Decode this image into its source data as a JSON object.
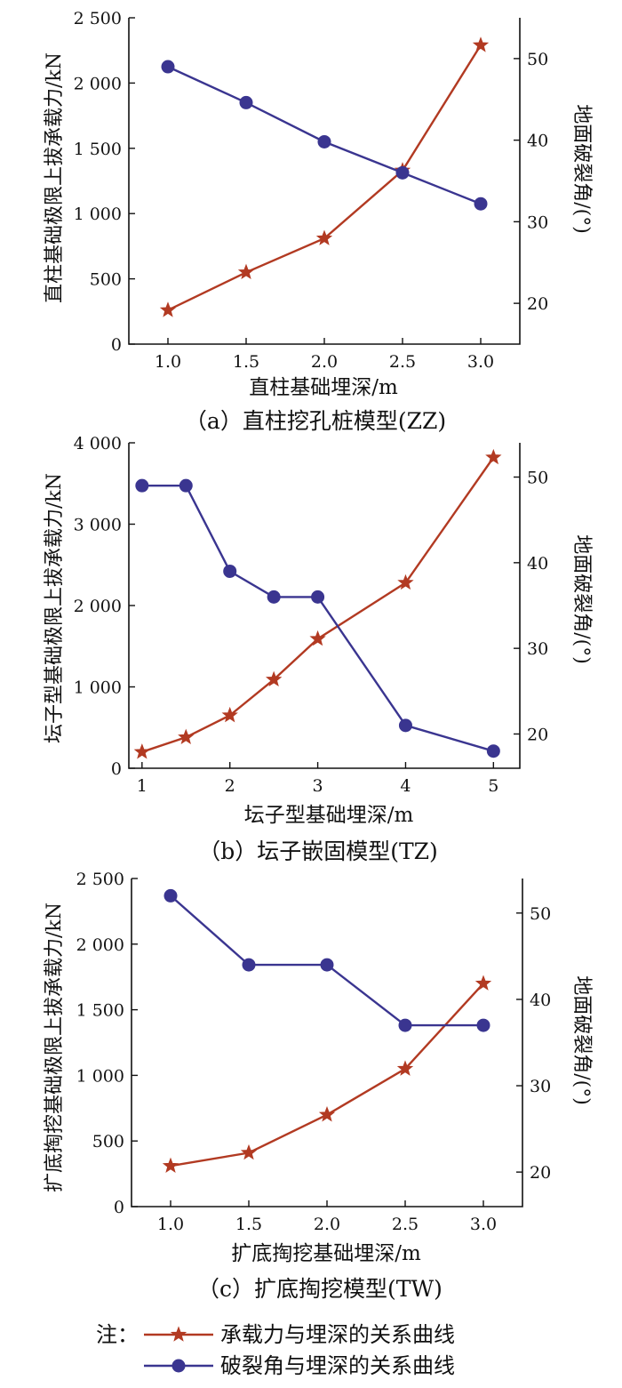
{
  "chart_data": [
    {
      "type": "line",
      "caption": "（a）直柱挖孔桩模型(ZZ)",
      "xlabel": "直柱基础埋深/m",
      "ylabel_left": "直柱基础极限上拔承载力/kN",
      "ylabel_right": "地面破裂角/(°)",
      "xlim": [
        0.75,
        3.25
      ],
      "xticks": [
        1.0,
        1.5,
        2.0,
        2.5,
        3.0
      ],
      "xtick_labels": [
        "1.0",
        "1.5",
        "2.0",
        "2.5",
        "3.0"
      ],
      "ylim_left": [
        0,
        2500
      ],
      "yticks_left": [
        0,
        500,
        1000,
        1500,
        2000,
        2500
      ],
      "ytick_labels_left": [
        "0",
        "500",
        "1 000",
        "1 500",
        "2 000",
        "2 500"
      ],
      "ylim_right": [
        15,
        55
      ],
      "yticks_right": [
        20,
        30,
        40,
        50
      ],
      "ytick_labels_right": [
        "20",
        "30",
        "40",
        "50"
      ],
      "grid": false,
      "series": [
        {
          "name": "承载力与埋深的关系曲线",
          "axis": "left",
          "marker": "star",
          "color": "#b23a22",
          "x": [
            1.0,
            1.5,
            2.0,
            2.5,
            3.0
          ],
          "values": [
            260,
            550,
            810,
            1330,
            2290
          ]
        },
        {
          "name": "破裂角与埋深的关系曲线",
          "axis": "right",
          "marker": "circle",
          "color": "#3a3590",
          "x": [
            1.0,
            1.5,
            2.0,
            2.5,
            3.0
          ],
          "values": [
            49,
            44.6,
            39.8,
            36,
            32.2
          ]
        }
      ]
    },
    {
      "type": "line",
      "caption": "（b）坛子嵌固模型(TZ)",
      "xlabel": "坛子型基础埋深/m",
      "ylabel_left": "坛子型基础极限上拔承载力/kN",
      "ylabel_right": "地面破裂角/(°)",
      "xlim": [
        0.85,
        5.3
      ],
      "xticks": [
        1,
        2,
        3,
        4,
        5
      ],
      "xtick_labels": [
        "1",
        "2",
        "3",
        "4",
        "5"
      ],
      "ylim_left": [
        0,
        4000
      ],
      "yticks_left": [
        0,
        1000,
        2000,
        3000,
        4000
      ],
      "ytick_labels_left": [
        "0",
        "1 000",
        "2 000",
        "3 000",
        "4 000"
      ],
      "ylim_right": [
        16,
        54
      ],
      "yticks_right": [
        20,
        30,
        40,
        50
      ],
      "ytick_labels_right": [
        "20",
        "30",
        "40",
        "50"
      ],
      "grid": false,
      "series": [
        {
          "name": "承载力与埋深的关系曲线",
          "axis": "left",
          "marker": "star",
          "color": "#b23a22",
          "x": [
            1.0,
            1.5,
            2.0,
            2.5,
            3.0,
            4.0,
            5.0
          ],
          "values": [
            200,
            380,
            650,
            1090,
            1590,
            2280,
            3820
          ]
        },
        {
          "name": "破裂角与埋深的关系曲线",
          "axis": "right",
          "marker": "circle",
          "color": "#3a3590",
          "x": [
            1.0,
            1.5,
            2.0,
            2.5,
            3.0,
            4.0,
            5.0
          ],
          "values": [
            49,
            49,
            39,
            36,
            36,
            21,
            18
          ]
        }
      ]
    },
    {
      "type": "line",
      "caption": "（c）扩底掏挖模型(TW)",
      "xlabel": "扩底掏挖基础埋深/m",
      "ylabel_left": "扩底掏挖基础极限上拔承载力/kN",
      "ylabel_right": "地面破裂角/(°)",
      "xlim": [
        0.75,
        3.25
      ],
      "xticks": [
        1.0,
        1.5,
        2.0,
        2.5,
        3.0
      ],
      "xtick_labels": [
        "1.0",
        "1.5",
        "2.0",
        "2.5",
        "3.0"
      ],
      "ylim_left": [
        0,
        2500
      ],
      "yticks_left": [
        0,
        500,
        1000,
        1500,
        2000,
        2500
      ],
      "ytick_labels_left": [
        "0",
        "500",
        "1 000",
        "1 500",
        "2 000",
        "2 500"
      ],
      "ylim_right": [
        16,
        54
      ],
      "yticks_right": [
        20,
        30,
        40,
        50
      ],
      "ytick_labels_right": [
        "20",
        "30",
        "40",
        "50"
      ],
      "grid": false,
      "series": [
        {
          "name": "承载力与埋深的关系曲线",
          "axis": "left",
          "marker": "star",
          "color": "#b23a22",
          "x": [
            1.0,
            1.5,
            2.0,
            2.5,
            3.0
          ],
          "values": [
            310,
            410,
            700,
            1050,
            1700
          ]
        },
        {
          "name": "破裂角与埋深的关系曲线",
          "axis": "right",
          "marker": "circle",
          "color": "#3a3590",
          "x": [
            1.0,
            1.5,
            2.0,
            2.5,
            3.0
          ],
          "values": [
            52,
            44,
            44,
            37,
            37
          ]
        }
      ]
    }
  ],
  "legend": {
    "prefix": "注：",
    "items": [
      {
        "label": "承载力与埋深的关系曲线",
        "marker": "star",
        "color": "#b23a22"
      },
      {
        "label": "破裂角与埋深的关系曲线",
        "marker": "circle",
        "color": "#3a3590"
      }
    ]
  }
}
